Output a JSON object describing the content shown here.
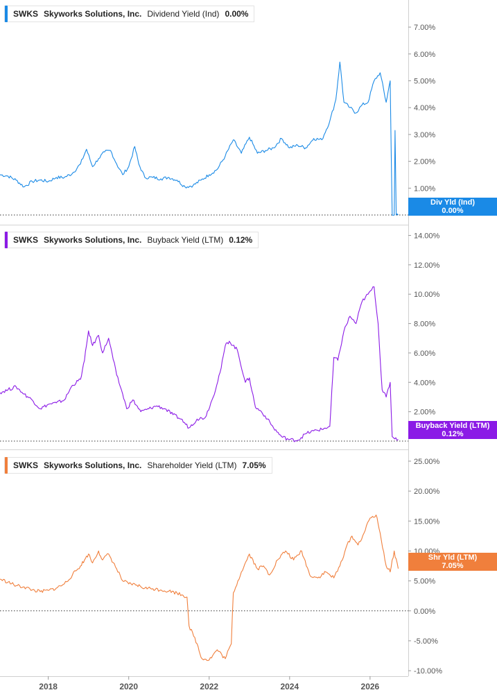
{
  "chart_data": [
    {
      "type": "line",
      "ticker": "SWKS",
      "company": "Skyworks Solutions, Inc.",
      "metric": "Dividend Yield (Ind)",
      "value_text": "0.00%",
      "tag_label": "Div Yld (Ind)",
      "tag_value": "0.00%",
      "color": "#1a8ae6",
      "ylim": [
        0,
        7.7
      ],
      "yticks": [
        1,
        2,
        3,
        4,
        5,
        6,
        7
      ],
      "ytick_labels": [
        "1.00%",
        "2.00%",
        "3.00%",
        "4.00%",
        "5.00%",
        "6.00%",
        "7.00%"
      ],
      "zero_line": 0,
      "x": [
        2016.8,
        2017.0,
        2017.2,
        2017.4,
        2017.6,
        2017.8,
        2018.0,
        2018.2,
        2018.4,
        2018.6,
        2018.8,
        2018.95,
        2019.1,
        2019.25,
        2019.4,
        2019.55,
        2019.7,
        2019.85,
        2020.0,
        2020.15,
        2020.25,
        2020.4,
        2020.6,
        2020.8,
        2021.0,
        2021.2,
        2021.4,
        2021.6,
        2021.8,
        2022.0,
        2022.2,
        2022.4,
        2022.6,
        2022.8,
        2023.0,
        2023.2,
        2023.4,
        2023.6,
        2023.8,
        2024.0,
        2024.2,
        2024.4,
        2024.6,
        2024.8,
        2025.0,
        2025.15,
        2025.25,
        2025.35,
        2025.5,
        2025.65,
        2025.8,
        2025.95,
        2026.1,
        2026.25,
        2026.4,
        2026.5,
        2026.55,
        2026.6,
        2026.62,
        2026.65,
        2026.7
      ],
      "values": [
        1.5,
        1.45,
        1.3,
        1.05,
        1.25,
        1.3,
        1.25,
        1.4,
        1.4,
        1.55,
        1.9,
        2.45,
        1.8,
        2.1,
        2.35,
        2.4,
        1.9,
        1.5,
        1.8,
        2.55,
        1.9,
        1.4,
        1.4,
        1.35,
        1.4,
        1.3,
        1.05,
        1.1,
        1.3,
        1.5,
        1.7,
        2.2,
        2.8,
        2.3,
        2.9,
        2.3,
        2.4,
        2.5,
        2.85,
        2.5,
        2.6,
        2.5,
        2.85,
        2.8,
        3.5,
        4.3,
        5.7,
        4.2,
        4.0,
        3.8,
        4.1,
        4.2,
        5.0,
        5.3,
        4.2,
        5.0,
        0.0,
        0.0,
        3.15,
        0.0,
        0.0
      ]
    },
    {
      "type": "line",
      "ticker": "SWKS",
      "company": "Skyworks Solutions, Inc.",
      "metric": "Buyback Yield (LTM)",
      "value_text": "0.12%",
      "tag_label": "Buyback Yield (LTM)",
      "tag_value": "0.12%",
      "color": "#8b1ae6",
      "ylim": [
        0,
        14.4
      ],
      "yticks": [
        2,
        4,
        6,
        8,
        10,
        12,
        14
      ],
      "ytick_labels": [
        "2.00%",
        "4.00%",
        "6.00%",
        "8.00%",
        "10.00%",
        "12.00%",
        "14.00%"
      ],
      "zero_line": 0,
      "x": [
        2016.8,
        2017.0,
        2017.2,
        2017.4,
        2017.6,
        2017.8,
        2018.0,
        2018.2,
        2018.4,
        2018.6,
        2018.8,
        2018.9,
        2019.0,
        2019.1,
        2019.25,
        2019.35,
        2019.5,
        2019.7,
        2019.85,
        2019.95,
        2020.1,
        2020.3,
        2020.5,
        2020.7,
        2020.9,
        2021.1,
        2021.3,
        2021.5,
        2021.7,
        2021.9,
        2022.1,
        2022.3,
        2022.4,
        2022.5,
        2022.7,
        2022.9,
        2023.0,
        2023.15,
        2023.3,
        2023.45,
        2023.6,
        2023.8,
        2024.0,
        2024.2,
        2024.4,
        2024.6,
        2024.8,
        2025.0,
        2025.1,
        2025.2,
        2025.35,
        2025.5,
        2025.65,
        2025.8,
        2025.95,
        2026.1,
        2026.2,
        2026.3,
        2026.4,
        2026.5,
        2026.55,
        2026.7
      ],
      "values": [
        3.3,
        3.5,
        3.7,
        3.2,
        2.8,
        2.2,
        2.5,
        2.6,
        2.8,
        3.8,
        4.2,
        5.5,
        7.5,
        6.5,
        7.2,
        6.0,
        7.0,
        4.5,
        3.2,
        2.2,
        2.8,
        2.0,
        2.2,
        2.4,
        2.2,
        1.8,
        1.5,
        0.9,
        1.5,
        1.6,
        3.0,
        5.0,
        6.5,
        6.8,
        6.2,
        4.0,
        4.3,
        2.3,
        2.0,
        1.5,
        0.9,
        0.3,
        0.1,
        0.05,
        0.5,
        0.7,
        0.8,
        1.0,
        5.7,
        5.5,
        7.5,
        8.5,
        8.0,
        9.5,
        10.0,
        10.5,
        8.0,
        3.5,
        3.0,
        4.0,
        0.3,
        0.12
      ]
    },
    {
      "type": "line",
      "ticker": "SWKS",
      "company": "Skyworks Solutions, Inc.",
      "metric": "Shareholder Yield (LTM)",
      "value_text": "7.05%",
      "tag_label": "Shr Yld (LTM)",
      "tag_value": "7.05%",
      "color": "#f07f3c",
      "ylim": [
        -10.8,
        26.5
      ],
      "yticks": [
        -10,
        -5,
        0,
        5,
        10,
        15,
        20,
        25
      ],
      "ytick_labels": [
        "-10.00%",
        "-5.00%",
        "0.00%",
        "5.00%",
        "10.00%",
        "15.00%",
        "20.00%",
        "25.00%"
      ],
      "zero_line": 0,
      "x": [
        2016.8,
        2017.0,
        2017.2,
        2017.4,
        2017.6,
        2017.8,
        2018.0,
        2018.2,
        2018.4,
        2018.6,
        2018.8,
        2018.9,
        2019.0,
        2019.1,
        2019.25,
        2019.35,
        2019.5,
        2019.7,
        2019.85,
        2020.0,
        2020.2,
        2020.4,
        2020.6,
        2020.8,
        2021.0,
        2021.2,
        2021.35,
        2021.45,
        2021.5,
        2021.7,
        2021.8,
        2022.0,
        2022.2,
        2022.4,
        2022.55,
        2022.6,
        2022.8,
        2023.0,
        2023.2,
        2023.35,
        2023.5,
        2023.7,
        2023.9,
        2024.1,
        2024.3,
        2024.5,
        2024.7,
        2024.9,
        2025.1,
        2025.25,
        2025.4,
        2025.55,
        2025.7,
        2025.85,
        2026.0,
        2026.15,
        2026.25,
        2026.4,
        2026.5,
        2026.6,
        2026.7
      ],
      "values": [
        5.3,
        4.8,
        4.2,
        4.0,
        3.5,
        3.2,
        3.4,
        3.8,
        4.5,
        6.0,
        7.5,
        8.5,
        9.5,
        8.0,
        10.0,
        8.5,
        9.5,
        7.0,
        5.0,
        4.5,
        4.3,
        3.8,
        3.7,
        3.5,
        3.3,
        3.0,
        2.6,
        2.3,
        -2.5,
        -5.5,
        -7.8,
        -8.2,
        -6.5,
        -8.0,
        -5.5,
        3.0,
        6.5,
        9.5,
        7.0,
        7.5,
        6.0,
        8.5,
        10.0,
        8.5,
        10.0,
        6.0,
        5.5,
        6.5,
        5.5,
        7.5,
        10.5,
        12.5,
        11.0,
        13.0,
        15.5,
        16.0,
        13.0,
        7.5,
        6.5,
        10.0,
        7.05
      ]
    }
  ],
  "x_axis": {
    "range": [
      2016.8,
      2026.95
    ],
    "ticks": [
      2018,
      2020,
      2022,
      2024,
      2026
    ],
    "tick_labels": [
      "2018",
      "2020",
      "2022",
      "2024",
      "2026"
    ]
  }
}
